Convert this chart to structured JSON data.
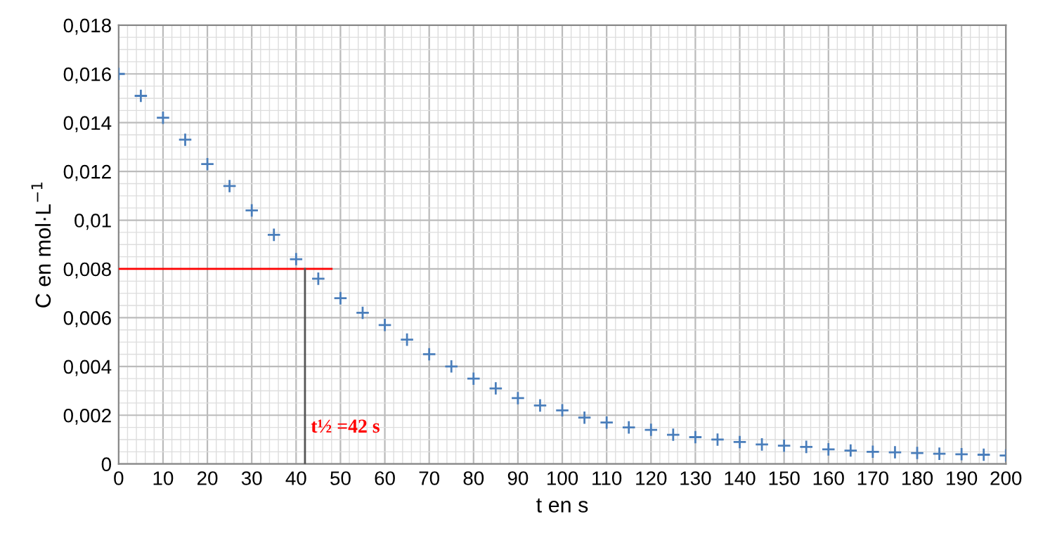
{
  "chart_data": {
    "type": "scatter",
    "xlabel": "t en s",
    "ylabel": "C en mol·L$^{−1}$",
    "x": [
      0,
      5,
      10,
      15,
      20,
      25,
      30,
      35,
      40,
      45,
      50,
      55,
      60,
      65,
      70,
      75,
      80,
      85,
      90,
      95,
      100,
      105,
      110,
      115,
      120,
      125,
      130,
      135,
      140,
      145,
      150,
      155,
      160,
      165,
      170,
      175,
      180,
      185,
      190,
      195,
      200
    ],
    "series": [
      {
        "color": "#4a7ebb",
        "marker": "cross",
        "values": [
          0.016,
          0.0151,
          0.0142,
          0.0133,
          0.0123,
          0.0114,
          0.0104,
          0.0094,
          0.0084,
          0.0076,
          0.0068,
          0.0062,
          0.0057,
          0.0051,
          0.0045,
          0.004,
          0.0035,
          0.0031,
          0.0027,
          0.0024,
          0.0022,
          0.0019,
          0.0017,
          0.0015,
          0.0014,
          0.0012,
          0.0011,
          0.001,
          0.0009,
          0.0008,
          0.00075,
          0.0007,
          0.0006,
          0.00055,
          0.0005,
          0.00048,
          0.00045,
          0.00042,
          0.0004,
          0.00038,
          0.00035
        ]
      },
      {
        "type": "line",
        "color": "#ff0000",
        "x": [
          0,
          48
        ],
        "values": [
          0.008,
          0.008
        ],
        "marker": "none"
      },
      {
        "type": "line",
        "color": "#555555",
        "x": [
          42,
          42
        ],
        "values": [
          0.008,
          0
        ],
        "marker": "none"
      }
    ],
    "annotations": [
      {
        "text": "t½ =42 s",
        "x": 42,
        "y": 0
      }
    ],
    "xlim": [
      0,
      200
    ],
    "xticks": [
      0,
      10,
      20,
      30,
      40,
      50,
      60,
      70,
      80,
      90,
      100,
      110,
      120,
      130,
      140,
      150,
      160,
      170,
      180,
      190,
      200
    ],
    "ylim": [
      0,
      0.018
    ],
    "yticks": [
      0,
      {
        "value": 0.002,
        "label": "0,002"
      },
      {
        "value": 0.004,
        "label": "0,004"
      },
      {
        "value": 0.006,
        "label": "0,006"
      },
      {
        "value": 0.008,
        "label": "0,008"
      },
      {
        "value": 0.01,
        "label": "0,01"
      },
      {
        "value": 0.012,
        "label": "0,012"
      },
      {
        "value": 0.014,
        "label": "0,014"
      },
      {
        "value": 0.016,
        "label": "0,016"
      },
      {
        "value": 0.018,
        "label": "0,018"
      }
    ],
    "grid": true
  }
}
